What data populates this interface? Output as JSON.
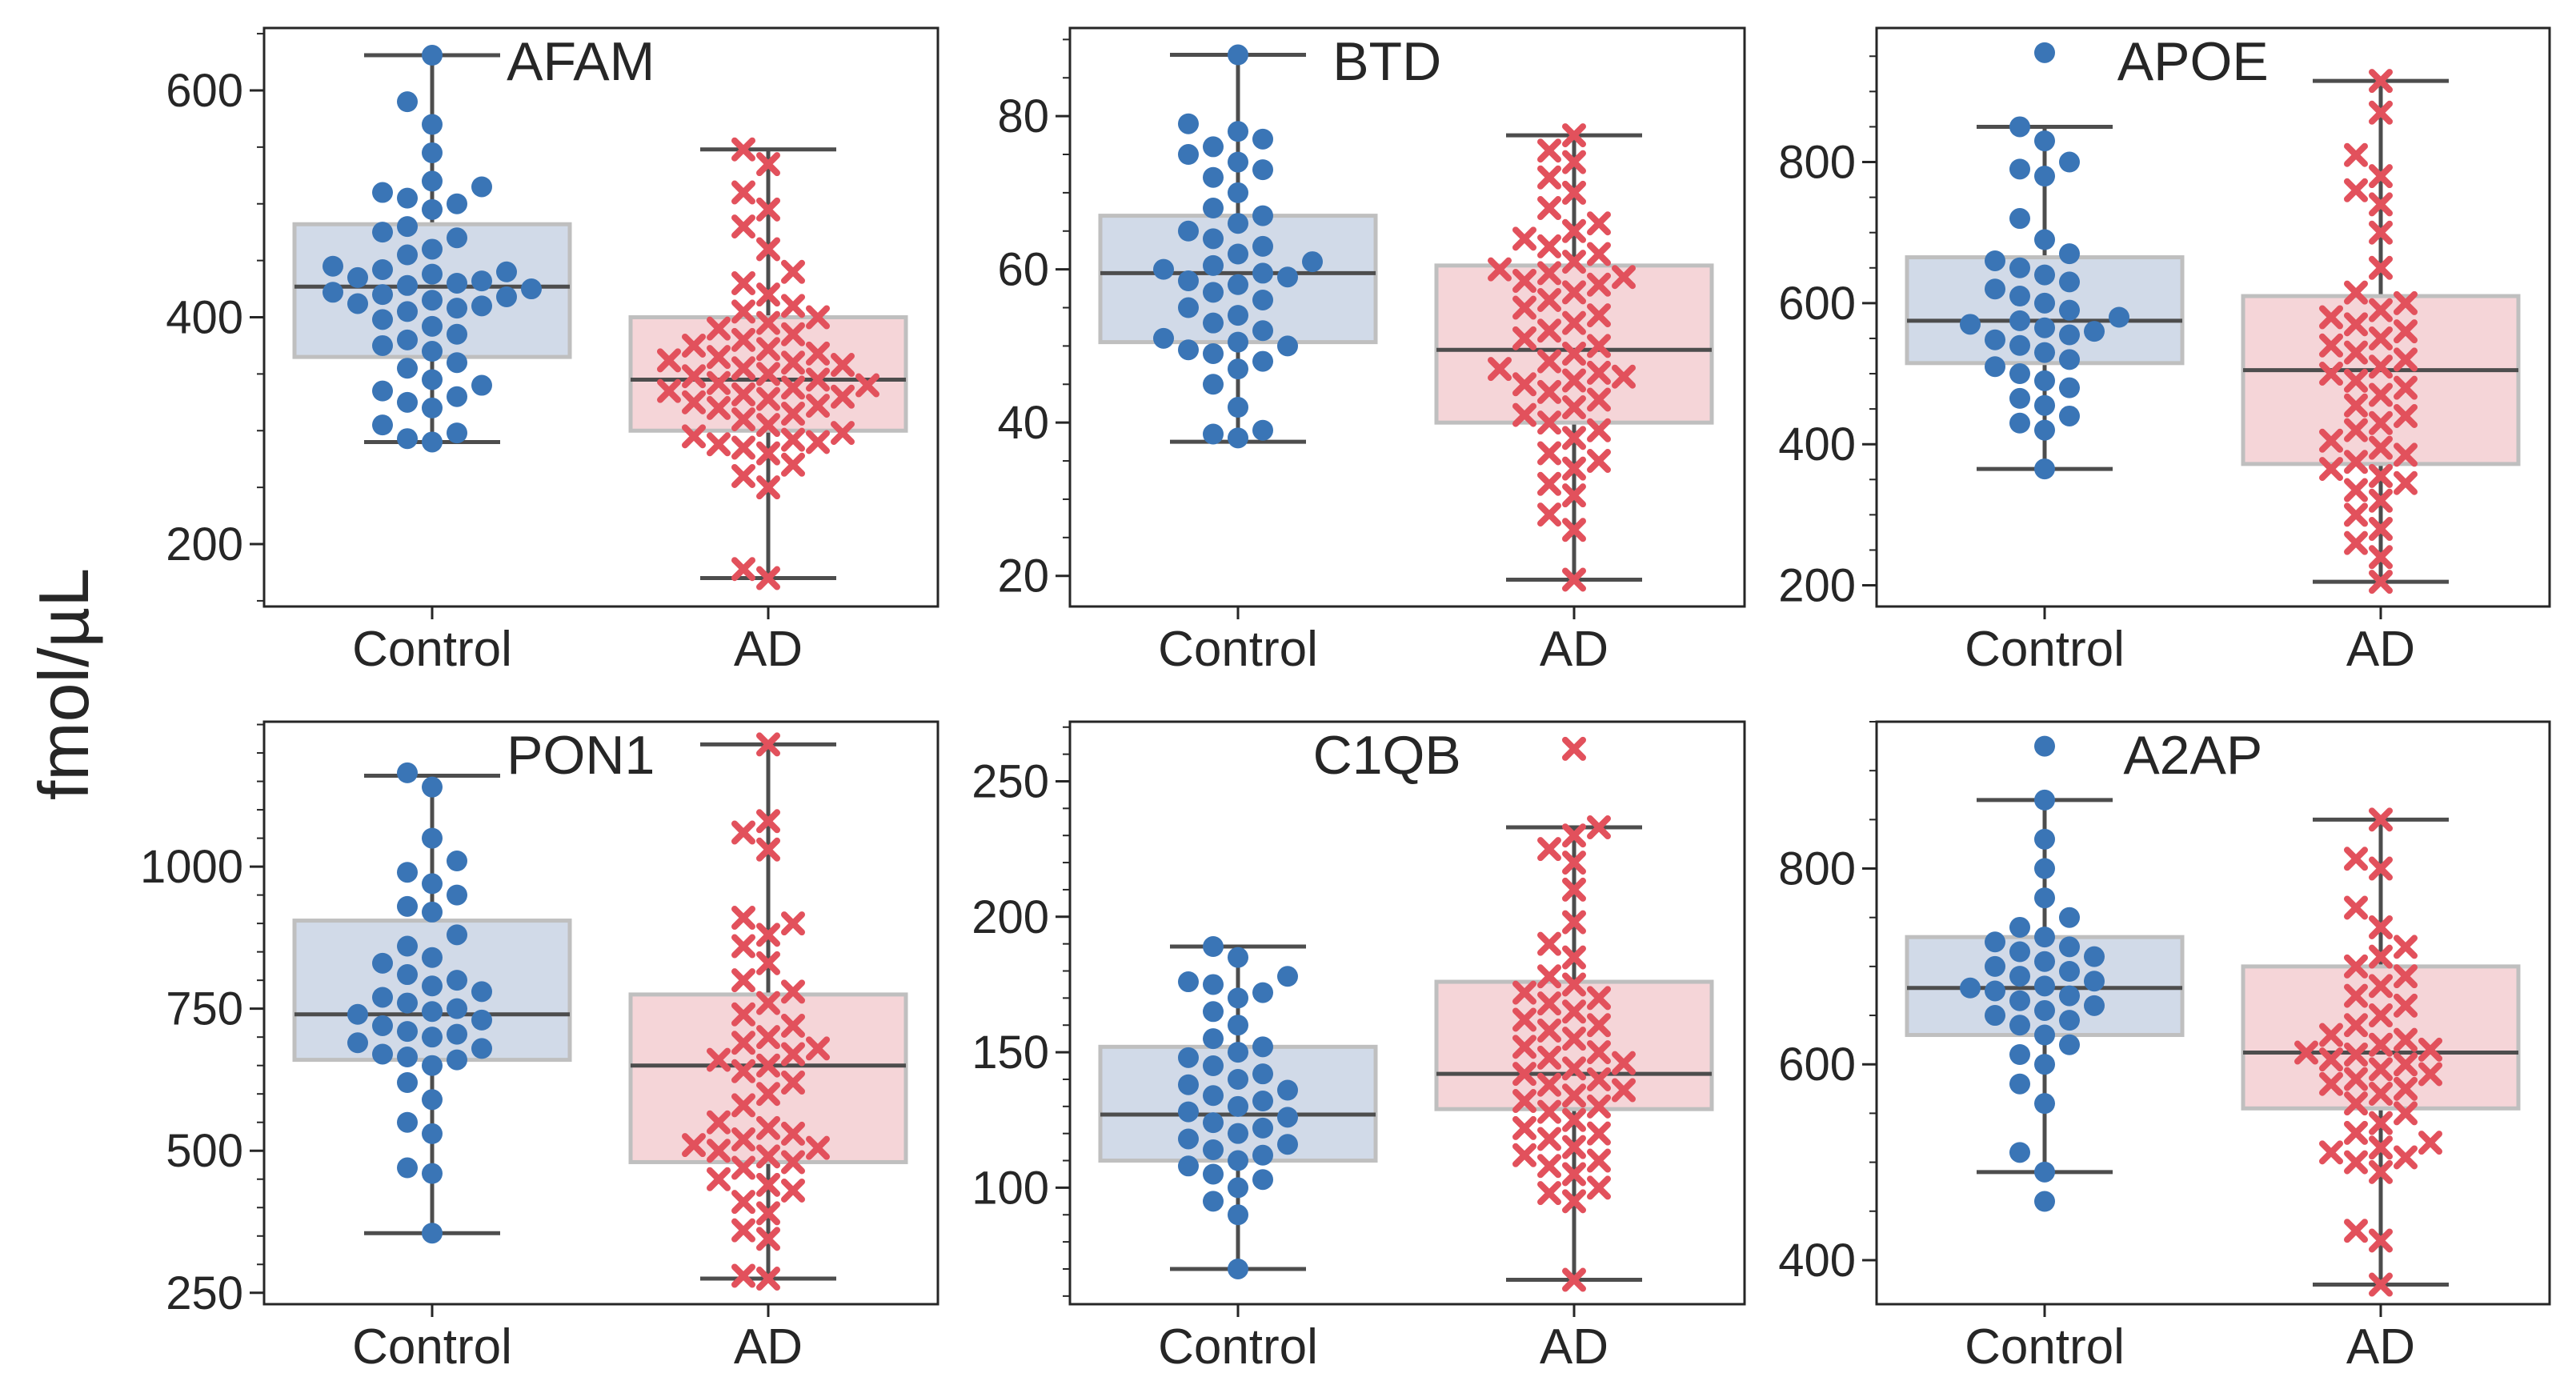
{
  "figure": {
    "ylabel": "fmol/µL"
  },
  "chart_data": [
    {
      "type": "box+swarm",
      "title": "AFAM",
      "categories": [
        "Control",
        "AD"
      ],
      "ylim": [
        145,
        655
      ],
      "yticks": [
        200,
        400,
        600
      ],
      "ytick_labels": [
        "200",
        "400",
        "600"
      ],
      "minor_step": 50,
      "boxes": [
        {
          "whisker_low": 290,
          "q1": 365,
          "median": 427,
          "q3": 482,
          "whisker_high": 631
        },
        {
          "whisker_low": 170,
          "q1": 300,
          "median": 345,
          "q3": 400,
          "whisker_high": 548
        }
      ],
      "points": [
        [
          290,
          293,
          298,
          305,
          320,
          325,
          330,
          335,
          340,
          345,
          355,
          360,
          370,
          375,
          380,
          385,
          392,
          398,
          405,
          408,
          410,
          412,
          415,
          418,
          420,
          422,
          425,
          428,
          430,
          432,
          435,
          438,
          440,
          442,
          445,
          455,
          460,
          470,
          475,
          480,
          495,
          500,
          505,
          510,
          515,
          520,
          545,
          570,
          590,
          631
        ],
        [
          170,
          178,
          250,
          260,
          270,
          280,
          285,
          288,
          290,
          292,
          295,
          298,
          305,
          310,
          315,
          320,
          322,
          325,
          328,
          330,
          332,
          335,
          338,
          340,
          342,
          345,
          348,
          350,
          355,
          358,
          360,
          362,
          365,
          368,
          372,
          375,
          380,
          385,
          390,
          395,
          400,
          405,
          410,
          420,
          430,
          440,
          460,
          480,
          495,
          510,
          535,
          548
        ]
      ]
    },
    {
      "type": "box+swarm",
      "title": "BTD",
      "categories": [
        "Control",
        "AD"
      ],
      "ylim": [
        16,
        91.5
      ],
      "yticks": [
        20,
        40,
        60,
        80
      ],
      "ytick_labels": [
        "20",
        "40",
        "60",
        "80"
      ],
      "minor_step": 5,
      "boxes": [
        {
          "whisker_low": 37.5,
          "q1": 50.5,
          "median": 59.5,
          "q3": 67,
          "whisker_high": 88
        },
        {
          "whisker_low": 19.5,
          "q1": 40,
          "median": 49.5,
          "q3": 60.5,
          "whisker_high": 77.5
        }
      ],
      "points": [
        [
          38,
          38.5,
          39,
          42,
          45,
          47,
          48,
          49,
          49.5,
          50,
          50.5,
          51,
          52,
          53,
          54,
          55,
          56,
          57,
          58,
          58.5,
          59,
          59.5,
          60,
          60.5,
          61,
          62,
          63,
          64,
          65,
          66,
          67,
          68,
          70,
          72,
          73,
          74,
          75,
          76,
          77,
          78,
          79,
          88
        ],
        [
          19.5,
          26,
          28,
          30.5,
          32,
          34,
          35,
          36,
          38,
          39,
          40,
          41,
          42,
          43,
          44,
          45,
          45.5,
          46,
          46.5,
          47,
          48,
          49,
          50,
          51,
          52,
          53,
          54,
          55,
          56,
          57,
          58,
          58.5,
          59,
          59.5,
          60,
          61,
          62,
          63,
          64,
          65,
          66,
          68,
          70,
          72,
          74,
          75.5,
          77.5
        ]
      ]
    },
    {
      "type": "box+swarm",
      "title": "APOE",
      "categories": [
        "Control",
        "AD"
      ],
      "ylim": [
        170,
        990
      ],
      "yticks": [
        200,
        400,
        600,
        800
      ],
      "ytick_labels": [
        "200",
        "400",
        "600",
        "800"
      ],
      "minor_step": 50,
      "boxes": [
        {
          "whisker_low": 365,
          "q1": 515,
          "median": 575,
          "q3": 665,
          "whisker_high": 850
        },
        {
          "whisker_low": 205,
          "q1": 372,
          "median": 505,
          "q3": 610,
          "whisker_high": 915
        }
      ],
      "points": [
        [
          365,
          420,
          430,
          440,
          455,
          465,
          480,
          490,
          500,
          510,
          520,
          530,
          540,
          548,
          555,
          560,
          565,
          570,
          575,
          580,
          590,
          600,
          610,
          620,
          630,
          640,
          650,
          660,
          670,
          690,
          720,
          780,
          790,
          800,
          830,
          850,
          955
        ],
        [
          205,
          240,
          260,
          280,
          300,
          320,
          335,
          345,
          355,
          365,
          375,
          385,
          395,
          405,
          420,
          430,
          440,
          455,
          470,
          480,
          490,
          500,
          510,
          520,
          530,
          540,
          550,
          560,
          570,
          580,
          590,
          600,
          615,
          650,
          700,
          740,
          760,
          780,
          810,
          870,
          915
        ]
      ]
    },
    {
      "type": "box+swarm",
      "title": "PON1",
      "categories": [
        "Control",
        "AD"
      ],
      "ylim": [
        230,
        1255
      ],
      "yticks": [
        250,
        500,
        750,
        1000
      ],
      "ytick_labels": [
        "250",
        "500",
        "750",
        "1000"
      ],
      "minor_step": 50,
      "boxes": [
        {
          "whisker_low": 355,
          "q1": 660,
          "median": 740,
          "q3": 905,
          "whisker_high": 1160
        },
        {
          "whisker_low": 275,
          "q1": 480,
          "median": 650,
          "q3": 775,
          "whisker_high": 1215
        }
      ],
      "points": [
        [
          355,
          460,
          470,
          530,
          550,
          590,
          620,
          650,
          660,
          665,
          670,
          680,
          690,
          700,
          705,
          710,
          720,
          730,
          740,
          745,
          750,
          760,
          770,
          780,
          790,
          800,
          810,
          830,
          840,
          860,
          880,
          920,
          930,
          950,
          970,
          990,
          1010,
          1050,
          1140,
          1165
        ],
        [
          275,
          280,
          345,
          360,
          390,
          410,
          430,
          440,
          450,
          470,
          480,
          490,
          500,
          505,
          510,
          520,
          530,
          540,
          550,
          580,
          600,
          620,
          640,
          650,
          660,
          670,
          680,
          690,
          700,
          720,
          740,
          760,
          780,
          800,
          830,
          860,
          880,
          900,
          910,
          1030,
          1060,
          1080,
          1215
        ]
      ]
    },
    {
      "type": "box+swarm",
      "title": "C1QB",
      "categories": [
        "Control",
        "AD"
      ],
      "ylim": [
        57,
        272
      ],
      "yticks": [
        100,
        150,
        200,
        250
      ],
      "ytick_labels": [
        "100",
        "150",
        "200",
        "250"
      ],
      "minor_step": 10,
      "boxes": [
        {
          "whisker_low": 70,
          "q1": 110,
          "median": 127,
          "q3": 152,
          "whisker_high": 189
        },
        {
          "whisker_low": 66,
          "q1": 129,
          "median": 142,
          "q3": 176,
          "whisker_high": 233
        }
      ],
      "points": [
        [
          70,
          90,
          95,
          100,
          103,
          105,
          108,
          110,
          112,
          114,
          116,
          118,
          120,
          122,
          124,
          126,
          128,
          130,
          132,
          134,
          136,
          138,
          140,
          142,
          145,
          148,
          150,
          152,
          155,
          160,
          165,
          170,
          172,
          175,
          176,
          178,
          185,
          189
        ],
        [
          66,
          95,
          98,
          100,
          105,
          108,
          110,
          112,
          115,
          118,
          120,
          122,
          125,
          128,
          130,
          132,
          134,
          136,
          138,
          140,
          142,
          144,
          146,
          148,
          150,
          152,
          155,
          158,
          160,
          162,
          165,
          168,
          170,
          172,
          175,
          178,
          185,
          190,
          198,
          210,
          220,
          225,
          230,
          233,
          262
        ]
      ]
    },
    {
      "type": "box+swarm",
      "title": "A2AP",
      "categories": [
        "Control",
        "AD"
      ],
      "ylim": [
        355,
        950
      ],
      "yticks": [
        400,
        600,
        800
      ],
      "ytick_labels": [
        "400",
        "600",
        "800"
      ],
      "minor_step": 50,
      "boxes": [
        {
          "whisker_low": 490,
          "q1": 630,
          "median": 678,
          "q3": 730,
          "whisker_high": 870
        },
        {
          "whisker_low": 375,
          "q1": 555,
          "median": 612,
          "q3": 700,
          "whisker_high": 850
        }
      ],
      "points": [
        [
          460,
          490,
          510,
          560,
          580,
          600,
          610,
          620,
          630,
          640,
          645,
          650,
          655,
          660,
          665,
          670,
          675,
          678,
          680,
          685,
          690,
          695,
          700,
          705,
          710,
          715,
          720,
          725,
          730,
          740,
          750,
          770,
          800,
          830,
          870,
          925
        ],
        [
          375,
          420,
          430,
          490,
          500,
          505,
          510,
          515,
          520,
          530,
          540,
          550,
          560,
          570,
          575,
          580,
          585,
          590,
          595,
          600,
          605,
          610,
          612,
          615,
          620,
          625,
          630,
          640,
          650,
          660,
          670,
          680,
          690,
          700,
          710,
          720,
          740,
          760,
          800,
          810,
          850
        ]
      ]
    }
  ],
  "style": {
    "control_color": "#3a75b6",
    "ad_color": "#e2515c",
    "control_box_fill": "#d1dae8",
    "ad_box_fill": "#f5d5d8",
    "box_edge": "#bfbfbf",
    "line_color": "#4d4d4d",
    "axis_color": "#262626"
  }
}
